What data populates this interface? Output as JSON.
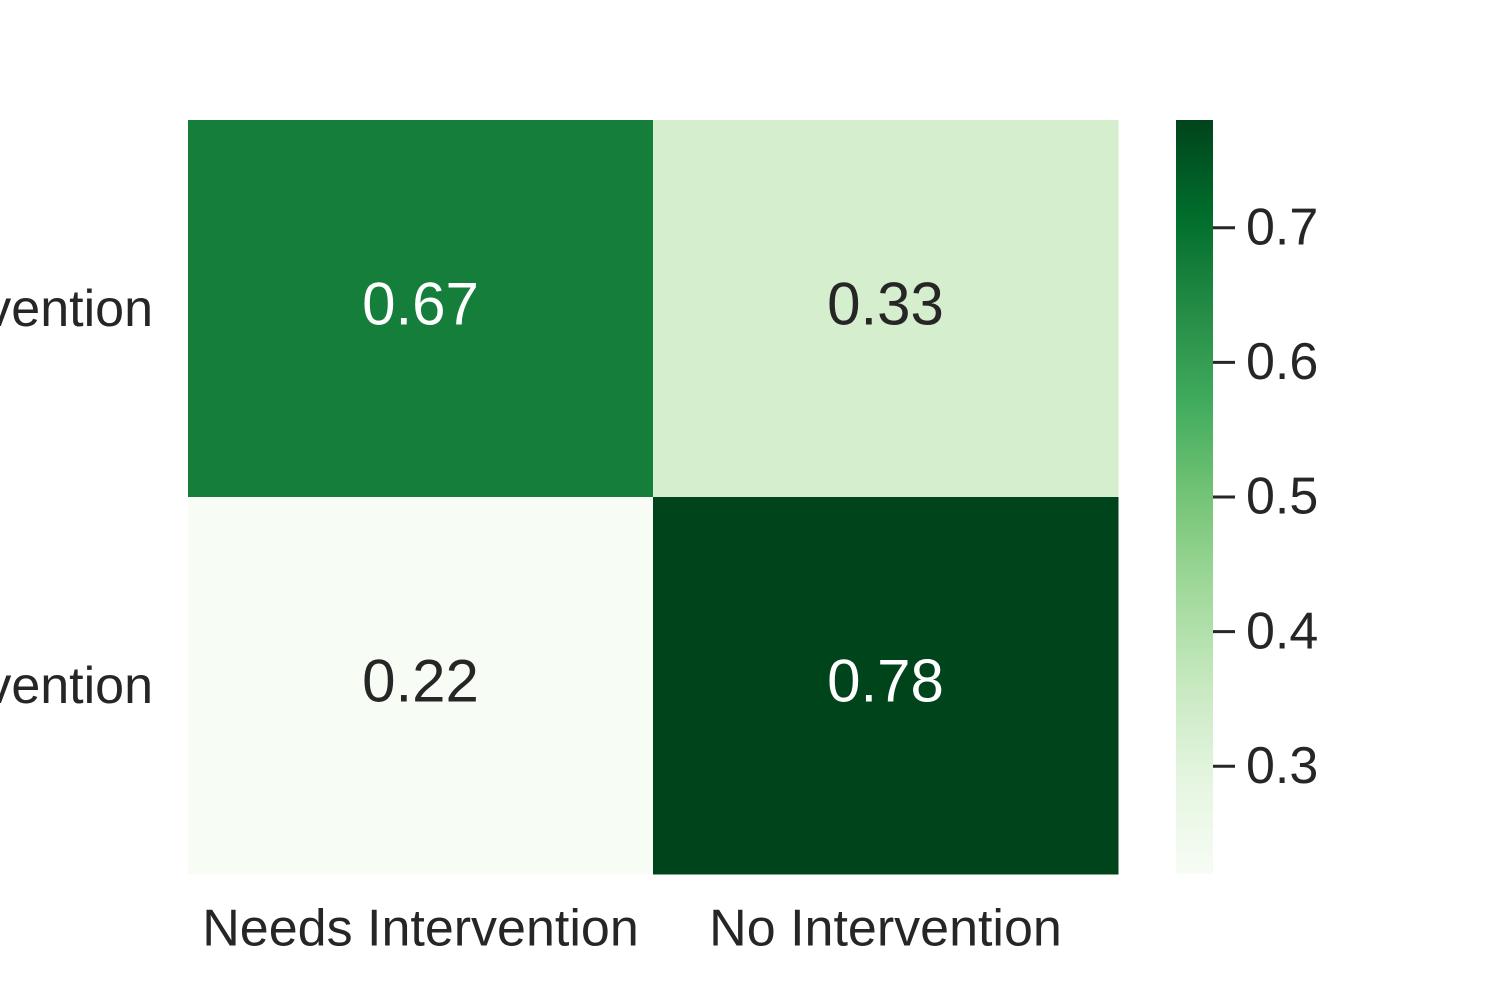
{
  "chart_data": {
    "type": "heatmap",
    "title": "",
    "xlabel": "",
    "ylabel": "",
    "x_categories": [
      "Needs Intervention",
      "No Intervention"
    ],
    "y_categories": [
      "Needs Intervention",
      "No Intervention"
    ],
    "values": [
      [
        0.67,
        0.33
      ],
      [
        0.22,
        0.78
      ]
    ],
    "value_labels": [
      [
        "0.67",
        "0.33"
      ],
      [
        "0.22",
        "0.78"
      ]
    ],
    "colormap": "Greens",
    "colorbar": {
      "range": [
        0.22,
        0.78
      ],
      "ticks": [
        0.3,
        0.4,
        0.5,
        0.6,
        0.7
      ],
      "tick_labels": [
        "0.3",
        "0.4",
        "0.5",
        "0.6",
        "0.7"
      ],
      "placement": "right"
    },
    "grid": false,
    "legend": "none"
  },
  "colors": {
    "text_dark": "#262626",
    "text_light": "#ffffff",
    "greens_ramp": [
      "#f7fcf5",
      "#e5f5e0",
      "#c7e9c0",
      "#a1d99b",
      "#74c476",
      "#41ab5d",
      "#238b45",
      "#006d2c",
      "#00441b"
    ]
  }
}
